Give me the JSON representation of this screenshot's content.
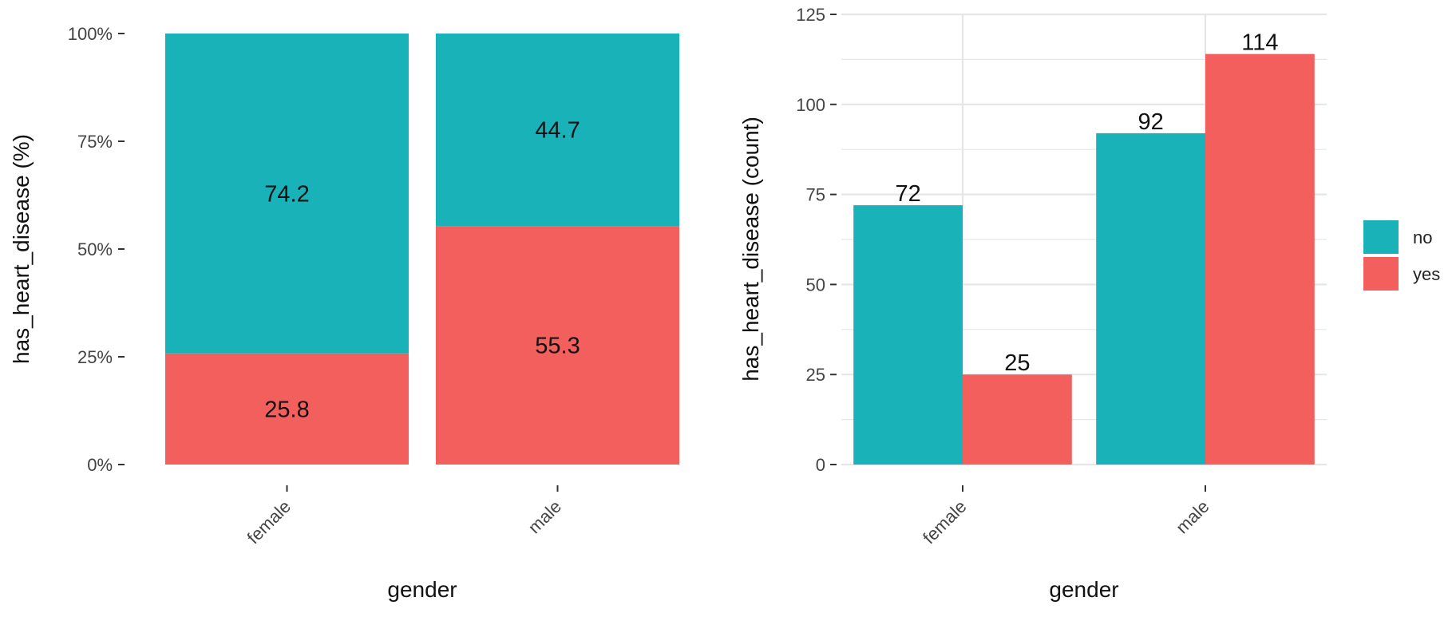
{
  "colors": {
    "no": "#19B2B8",
    "yes": "#F35F5C",
    "grid": "#E6E6E6",
    "axis_tick": "#333333"
  },
  "chart_data": [
    {
      "type": "bar",
      "stacking": "percent",
      "categories": [
        "female",
        "male"
      ],
      "series": [
        {
          "name": "no",
          "values": [
            74.2,
            44.7
          ]
        },
        {
          "name": "yes",
          "values": [
            25.8,
            55.3
          ]
        }
      ],
      "data_labels": {
        "no": [
          "74.2",
          "44.7"
        ],
        "yes": [
          "25.8",
          "55.3"
        ]
      },
      "title": "",
      "xlabel": "gender",
      "ylabel": "has_heart_disease  (%)",
      "ylim": [
        0,
        100
      ],
      "yticks": [
        0,
        25,
        50,
        75,
        100
      ],
      "ytick_labels": [
        "0%",
        "25%",
        "50%",
        "75%",
        "100%"
      ],
      "grid": false,
      "legend": "none"
    },
    {
      "type": "bar",
      "stacking": "dodge",
      "categories": [
        "female",
        "male"
      ],
      "series": [
        {
          "name": "no",
          "values": [
            72,
            92
          ]
        },
        {
          "name": "yes",
          "values": [
            25,
            114
          ]
        }
      ],
      "data_labels": {
        "no": [
          "72",
          "92"
        ],
        "yes": [
          "25",
          "114"
        ]
      },
      "title": "",
      "xlabel": "gender",
      "ylabel": "has_heart_disease  (count)",
      "ylim": [
        0,
        125
      ],
      "yticks": [
        0,
        25,
        50,
        75,
        100,
        125
      ],
      "ytick_labels": [
        "0",
        "25",
        "50",
        "75",
        "100",
        "125"
      ],
      "grid": true,
      "legend": "right"
    }
  ],
  "legend": {
    "entries": [
      {
        "key": "no",
        "label": "no"
      },
      {
        "key": "yes",
        "label": "yes"
      }
    ]
  }
}
